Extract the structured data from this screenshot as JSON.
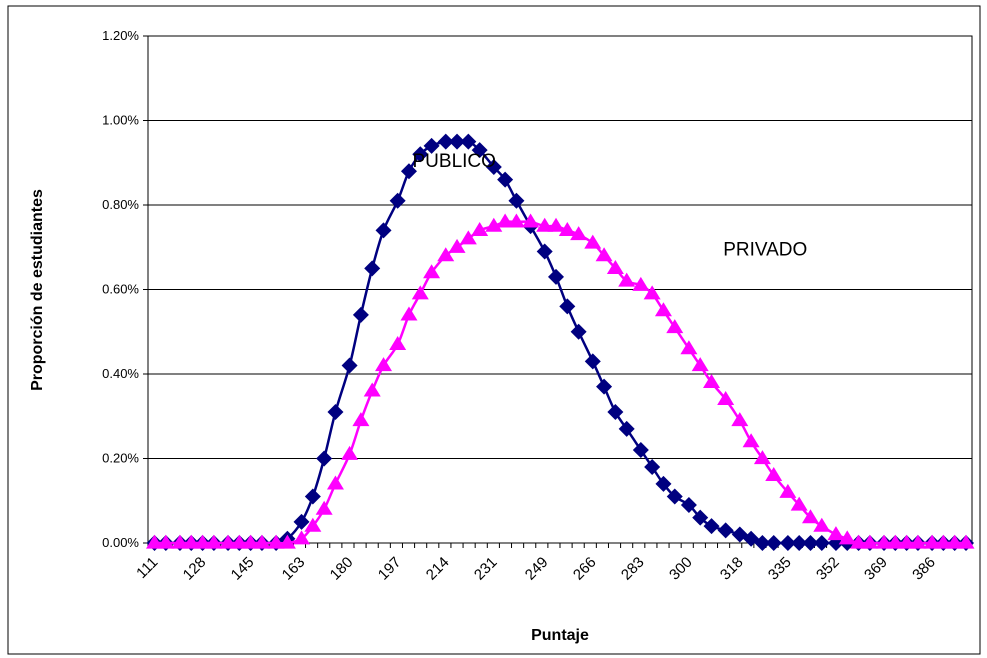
{
  "chart_data": {
    "type": "line",
    "title": "",
    "xlabel": "Puntaje",
    "ylabel": "Proporción de estudiantes",
    "ylim": [
      0,
      0.012
    ],
    "y_ticks": [
      "0.00%",
      "0.20%",
      "0.40%",
      "0.60%",
      "0.80%",
      "1.00%",
      "1.20%"
    ],
    "y_tick_values": [
      0,
      0.002,
      0.004,
      0.006,
      0.008,
      0.01,
      0.012
    ],
    "x_tick_labels": [
      "111",
      "128",
      "145",
      "163",
      "180",
      "197",
      "214",
      "231",
      "249",
      "266",
      "283",
      "300",
      "318",
      "335",
      "352",
      "369",
      "386"
    ],
    "x": [
      111,
      115,
      120,
      124,
      128,
      132,
      137,
      141,
      145,
      149,
      154,
      158,
      163,
      167,
      171,
      175,
      180,
      184,
      188,
      192,
      197,
      201,
      205,
      209,
      214,
      218,
      222,
      226,
      231,
      235,
      239,
      244,
      249,
      253,
      257,
      261,
      266,
      270,
      274,
      278,
      283,
      287,
      291,
      295,
      300,
      304,
      308,
      313,
      318,
      322,
      326,
      330,
      335,
      339,
      343,
      347,
      352,
      356,
      360,
      364,
      369,
      373,
      377,
      381,
      386,
      390,
      394,
      398
    ],
    "series": [
      {
        "name": "PUBLICO",
        "color": "#000080",
        "marker": "diamond",
        "values": [
          0,
          0,
          0,
          0,
          0,
          0,
          0,
          0,
          0,
          0,
          0,
          0.0001,
          0.0005,
          0.0011,
          0.002,
          0.0031,
          0.0042,
          0.0054,
          0.0065,
          0.0074,
          0.0081,
          0.0088,
          0.0092,
          0.0094,
          0.0095,
          0.0095,
          0.0095,
          0.0093,
          0.0089,
          0.0086,
          0.0081,
          0.0075,
          0.0069,
          0.0063,
          0.0056,
          0.005,
          0.0043,
          0.0037,
          0.0031,
          0.0027,
          0.0022,
          0.0018,
          0.0014,
          0.0011,
          0.0009,
          0.0006,
          0.0004,
          0.0003,
          0.0002,
          0.0001,
          0,
          0,
          0,
          0,
          0,
          0,
          0,
          0,
          0,
          0,
          0,
          0,
          0,
          0,
          0,
          0,
          0,
          0
        ]
      },
      {
        "name": "PRIVADO",
        "color": "#FF00FF",
        "marker": "triangle",
        "values": [
          0,
          0,
          0,
          0,
          0,
          0,
          0,
          0,
          0,
          0,
          0,
          0,
          0.0001,
          0.0004,
          0.0008,
          0.0014,
          0.0021,
          0.0029,
          0.0036,
          0.0042,
          0.0047,
          0.0054,
          0.0059,
          0.0064,
          0.0068,
          0.007,
          0.0072,
          0.0074,
          0.0075,
          0.0076,
          0.0076,
          0.0076,
          0.0075,
          0.0075,
          0.0074,
          0.0073,
          0.0071,
          0.0068,
          0.0065,
          0.0062,
          0.0061,
          0.0059,
          0.0055,
          0.0051,
          0.0046,
          0.0042,
          0.0038,
          0.0034,
          0.0029,
          0.0024,
          0.002,
          0.0016,
          0.0012,
          0.0009,
          0.0006,
          0.0004,
          0.0002,
          0.0001,
          0,
          0,
          0,
          0,
          0,
          0,
          0,
          0,
          0,
          0
        ]
      }
    ],
    "annotations": [
      {
        "text": "PUBLICO",
        "x": 217,
        "y": 0.0089
      },
      {
        "text": "PRIVADO",
        "x": 327,
        "y": 0.0068
      }
    ],
    "grid": true,
    "legend": "none"
  }
}
